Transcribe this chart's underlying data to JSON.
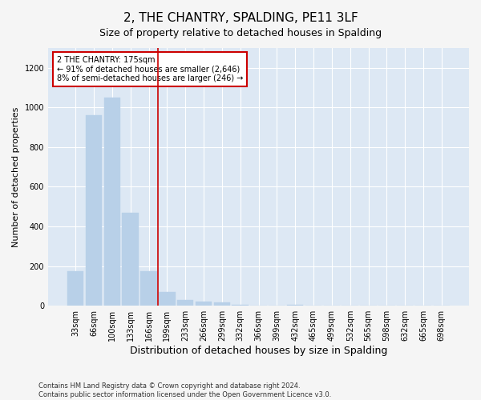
{
  "title": "2, THE CHANTRY, SPALDING, PE11 3LF",
  "subtitle": "Size of property relative to detached houses in Spalding",
  "xlabel": "Distribution of detached houses by size in Spalding",
  "ylabel": "Number of detached properties",
  "bar_color": "#b8d0e8",
  "bar_edge_color": "#b8d0e8",
  "background_color": "#dde8f4",
  "annotation_line_color": "#cc0000",
  "annotation_box_color": "#cc0000",
  "annotation_text": "2 THE CHANTRY: 175sqm\n← 91% of detached houses are smaller (2,646)\n8% of semi-detached houses are larger (246) →",
  "footer_text": "Contains HM Land Registry data © Crown copyright and database right 2024.\nContains public sector information licensed under the Open Government Licence v3.0.",
  "categories": [
    "33sqm",
    "66sqm",
    "100sqm",
    "133sqm",
    "166sqm",
    "199sqm",
    "233sqm",
    "266sqm",
    "299sqm",
    "332sqm",
    "366sqm",
    "399sqm",
    "432sqm",
    "465sqm",
    "499sqm",
    "532sqm",
    "565sqm",
    "598sqm",
    "632sqm",
    "665sqm",
    "698sqm"
  ],
  "values": [
    175,
    960,
    1050,
    470,
    175,
    70,
    30,
    20,
    15,
    5,
    0,
    0,
    5,
    0,
    0,
    0,
    0,
    0,
    0,
    0,
    0
  ],
  "red_line_x": 4.5,
  "ylim": [
    0,
    1300
  ],
  "yticks": [
    0,
    200,
    400,
    600,
    800,
    1000,
    1200
  ],
  "grid_color": "#ffffff",
  "title_fontsize": 11,
  "subtitle_fontsize": 9,
  "tick_fontsize": 7,
  "ylabel_fontsize": 8,
  "xlabel_fontsize": 9,
  "annotation_fontsize": 7,
  "footer_fontsize": 6
}
